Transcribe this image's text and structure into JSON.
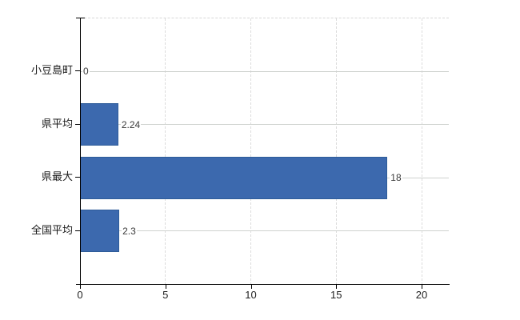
{
  "chart_data": {
    "type": "bar",
    "orientation": "horizontal",
    "title": "",
    "xlabel": "",
    "ylabel": "",
    "categories": [
      "小豆島町",
      "県平均",
      "県最大",
      "全国平均"
    ],
    "values": [
      0,
      2.24,
      18,
      2.3
    ],
    "value_labels": [
      "0",
      "2.24",
      "18",
      "2.3"
    ],
    "xlim": [
      0,
      20
    ],
    "x_ticks": [
      "0",
      "5",
      "10",
      "15",
      "20"
    ],
    "x_tick_values": [
      0,
      5,
      10,
      15,
      20
    ],
    "grid": true,
    "legend": false,
    "bar_color": "#3c69ae",
    "bar_border_color": "#2e5c99",
    "axis_color": "#000000",
    "h_gridline_color": "#cfd2cf",
    "v_gridline_color": "#dcdcdc",
    "background_color": "#ffffff"
  }
}
